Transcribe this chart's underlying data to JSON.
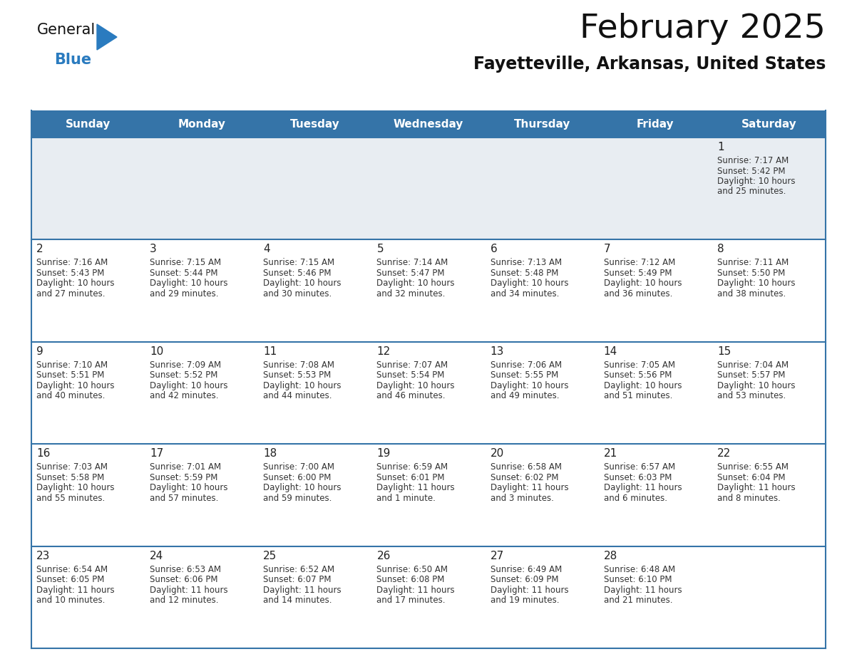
{
  "title": "February 2025",
  "subtitle": "Fayetteville, Arkansas, United States",
  "days_of_week": [
    "Sunday",
    "Monday",
    "Tuesday",
    "Wednesday",
    "Thursday",
    "Friday",
    "Saturday"
  ],
  "header_bg": "#3574a8",
  "header_text": "#ffffff",
  "row1_bg": "#e8edf2",
  "row_bg": "#ffffff",
  "row_sep_color": "#3574a8",
  "day_number_color": "#222222",
  "info_text_color": "#333333",
  "title_color": "#111111",
  "subtitle_color": "#111111",
  "logo_general_color": "#111111",
  "logo_blue_color": "#2a7bbf",
  "calendar_data": [
    [
      null,
      null,
      null,
      null,
      null,
      null,
      {
        "day": 1,
        "sunrise": "7:17 AM",
        "sunset": "5:42 PM",
        "daylight": "10 hours",
        "daylight2": "and 25 minutes."
      }
    ],
    [
      {
        "day": 2,
        "sunrise": "7:16 AM",
        "sunset": "5:43 PM",
        "daylight": "10 hours",
        "daylight2": "and 27 minutes."
      },
      {
        "day": 3,
        "sunrise": "7:15 AM",
        "sunset": "5:44 PM",
        "daylight": "10 hours",
        "daylight2": "and 29 minutes."
      },
      {
        "day": 4,
        "sunrise": "7:15 AM",
        "sunset": "5:46 PM",
        "daylight": "10 hours",
        "daylight2": "and 30 minutes."
      },
      {
        "day": 5,
        "sunrise": "7:14 AM",
        "sunset": "5:47 PM",
        "daylight": "10 hours",
        "daylight2": "and 32 minutes."
      },
      {
        "day": 6,
        "sunrise": "7:13 AM",
        "sunset": "5:48 PM",
        "daylight": "10 hours",
        "daylight2": "and 34 minutes."
      },
      {
        "day": 7,
        "sunrise": "7:12 AM",
        "sunset": "5:49 PM",
        "daylight": "10 hours",
        "daylight2": "and 36 minutes."
      },
      {
        "day": 8,
        "sunrise": "7:11 AM",
        "sunset": "5:50 PM",
        "daylight": "10 hours",
        "daylight2": "and 38 minutes."
      }
    ],
    [
      {
        "day": 9,
        "sunrise": "7:10 AM",
        "sunset": "5:51 PM",
        "daylight": "10 hours",
        "daylight2": "and 40 minutes."
      },
      {
        "day": 10,
        "sunrise": "7:09 AM",
        "sunset": "5:52 PM",
        "daylight": "10 hours",
        "daylight2": "and 42 minutes."
      },
      {
        "day": 11,
        "sunrise": "7:08 AM",
        "sunset": "5:53 PM",
        "daylight": "10 hours",
        "daylight2": "and 44 minutes."
      },
      {
        "day": 12,
        "sunrise": "7:07 AM",
        "sunset": "5:54 PM",
        "daylight": "10 hours",
        "daylight2": "and 46 minutes."
      },
      {
        "day": 13,
        "sunrise": "7:06 AM",
        "sunset": "5:55 PM",
        "daylight": "10 hours",
        "daylight2": "and 49 minutes."
      },
      {
        "day": 14,
        "sunrise": "7:05 AM",
        "sunset": "5:56 PM",
        "daylight": "10 hours",
        "daylight2": "and 51 minutes."
      },
      {
        "day": 15,
        "sunrise": "7:04 AM",
        "sunset": "5:57 PM",
        "daylight": "10 hours",
        "daylight2": "and 53 minutes."
      }
    ],
    [
      {
        "day": 16,
        "sunrise": "7:03 AM",
        "sunset": "5:58 PM",
        "daylight": "10 hours",
        "daylight2": "and 55 minutes."
      },
      {
        "day": 17,
        "sunrise": "7:01 AM",
        "sunset": "5:59 PM",
        "daylight": "10 hours",
        "daylight2": "and 57 minutes."
      },
      {
        "day": 18,
        "sunrise": "7:00 AM",
        "sunset": "6:00 PM",
        "daylight": "10 hours",
        "daylight2": "and 59 minutes."
      },
      {
        "day": 19,
        "sunrise": "6:59 AM",
        "sunset": "6:01 PM",
        "daylight": "11 hours",
        "daylight2": "and 1 minute."
      },
      {
        "day": 20,
        "sunrise": "6:58 AM",
        "sunset": "6:02 PM",
        "daylight": "11 hours",
        "daylight2": "and 3 minutes."
      },
      {
        "day": 21,
        "sunrise": "6:57 AM",
        "sunset": "6:03 PM",
        "daylight": "11 hours",
        "daylight2": "and 6 minutes."
      },
      {
        "day": 22,
        "sunrise": "6:55 AM",
        "sunset": "6:04 PM",
        "daylight": "11 hours",
        "daylight2": "and 8 minutes."
      }
    ],
    [
      {
        "day": 23,
        "sunrise": "6:54 AM",
        "sunset": "6:05 PM",
        "daylight": "11 hours",
        "daylight2": "and 10 minutes."
      },
      {
        "day": 24,
        "sunrise": "6:53 AM",
        "sunset": "6:06 PM",
        "daylight": "11 hours",
        "daylight2": "and 12 minutes."
      },
      {
        "day": 25,
        "sunrise": "6:52 AM",
        "sunset": "6:07 PM",
        "daylight": "11 hours",
        "daylight2": "and 14 minutes."
      },
      {
        "day": 26,
        "sunrise": "6:50 AM",
        "sunset": "6:08 PM",
        "daylight": "11 hours",
        "daylight2": "and 17 minutes."
      },
      {
        "day": 27,
        "sunrise": "6:49 AM",
        "sunset": "6:09 PM",
        "daylight": "11 hours",
        "daylight2": "and 19 minutes."
      },
      {
        "day": 28,
        "sunrise": "6:48 AM",
        "sunset": "6:10 PM",
        "daylight": "11 hours",
        "daylight2": "and 21 minutes."
      },
      null
    ]
  ]
}
